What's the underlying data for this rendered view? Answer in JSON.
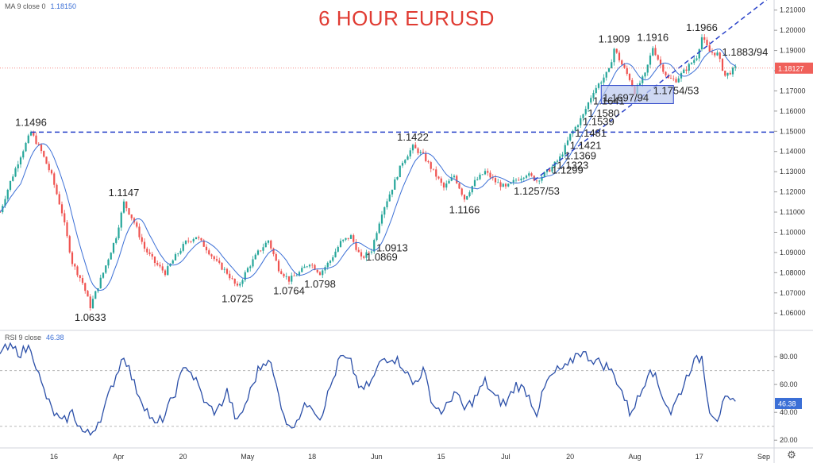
{
  "title": "6 HOUR EURUSD",
  "price_indicator": {
    "label": "MA 9 close 0",
    "value": "1.18150"
  },
  "rsi_indicator": {
    "label": "RSI 9 close",
    "value": "46.38"
  },
  "colors": {
    "title": "#e03b32",
    "up_candle": "#26a69a",
    "down_candle": "#ef5350",
    "ma_line": "#3b6fd6",
    "trend_line": "#2942c9",
    "rsi_line": "#2b4fa8",
    "last_price_tag": "#f0605a",
    "zone_fill": "#b9c8ee"
  },
  "chart_data": [
    {
      "type": "candlestick",
      "title": "6 HOUR EURUSD",
      "ylim": [
        1.053,
        1.215
      ],
      "y_ticks": [
        "1.21000",
        "1.20000",
        "1.19000",
        "1.18000",
        "1.17000",
        "1.16000",
        "1.15000",
        "1.14000",
        "1.13000",
        "1.12000",
        "1.11000",
        "1.10000",
        "1.09000",
        "1.08000",
        "1.07000",
        "1.06000"
      ],
      "x_ticks": [
        "16",
        "Apr",
        "20",
        "May",
        "18",
        "Jun",
        "15",
        "Jul",
        "20",
        "Aug",
        "17",
        "Sep"
      ],
      "last_price": "1.18127",
      "price_path": [
        [
          0,
          1.11
        ],
        [
          4,
          1.125
        ],
        [
          8,
          1.138
        ],
        [
          12,
          1.1496
        ],
        [
          16,
          1.14
        ],
        [
          20,
          1.128
        ],
        [
          24,
          1.11
        ],
        [
          28,
          1.085
        ],
        [
          32,
          1.075
        ],
        [
          35,
          1.0633
        ],
        [
          40,
          1.08
        ],
        [
          45,
          1.098
        ],
        [
          48,
          1.1147
        ],
        [
          52,
          1.105
        ],
        [
          56,
          1.092
        ],
        [
          60,
          1.085
        ],
        [
          64,
          1.08
        ],
        [
          68,
          1.088
        ],
        [
          72,
          1.095
        ],
        [
          76,
          1.098
        ],
        [
          80,
          1.092
        ],
        [
          84,
          1.085
        ],
        [
          88,
          1.08
        ],
        [
          92,
          1.0725
        ],
        [
          96,
          1.082
        ],
        [
          100,
          1.09
        ],
        [
          104,
          1.096
        ],
        [
          108,
          1.082
        ],
        [
          112,
          1.0764
        ],
        [
          116,
          1.08
        ],
        [
          120,
          1.085
        ],
        [
          124,
          1.0798
        ],
        [
          128,
          1.086
        ],
        [
          132,
          1.095
        ],
        [
          136,
          1.098
        ],
        [
          140,
          1.0869
        ],
        [
          144,
          1.0913
        ],
        [
          148,
          1.11
        ],
        [
          152,
          1.122
        ],
        [
          156,
          1.135
        ],
        [
          160,
          1.1422
        ],
        [
          164,
          1.138
        ],
        [
          168,
          1.13
        ],
        [
          172,
          1.122
        ],
        [
          176,
          1.128
        ],
        [
          180,
          1.1166
        ],
        [
          184,
          1.125
        ],
        [
          188,
          1.13
        ],
        [
          192,
          1.125
        ],
        [
          196,
          1.122
        ],
        [
          200,
          1.126
        ],
        [
          204,
          1.129
        ],
        [
          208,
          1.1257
        ],
        [
          212,
          1.1299
        ],
        [
          214,
          1.1323
        ],
        [
          217,
          1.1369
        ],
        [
          219,
          1.1421
        ],
        [
          221,
          1.1481
        ],
        [
          224,
          1.1539
        ],
        [
          226,
          1.158
        ],
        [
          228,
          1.1641
        ],
        [
          230,
          1.17
        ],
        [
          233,
          1.175
        ],
        [
          236,
          1.18
        ],
        [
          238,
          1.1909
        ],
        [
          241,
          1.183
        ],
        [
          244,
          1.176
        ],
        [
          246,
          1.1697
        ],
        [
          250,
          1.178
        ],
        [
          253,
          1.1916
        ],
        [
          256,
          1.183
        ],
        [
          259,
          1.176
        ],
        [
          262,
          1.1754
        ],
        [
          266,
          1.181
        ],
        [
          270,
          1.187
        ],
        [
          272,
          1.1966
        ],
        [
          275,
          1.1894
        ],
        [
          278,
          1.1883
        ],
        [
          281,
          1.1775
        ],
        [
          285,
          1.1812
        ]
      ],
      "horizontal_levels": [
        1.1496
      ],
      "trend_line": {
        "from": [
          207,
          1.1257
        ],
        "to": [
          300,
          1.218
        ]
      },
      "zone": {
        "x": [
          233,
          261
        ],
        "y": [
          1.1637,
          1.1727
        ],
        "label": "1.1697/94"
      },
      "annotations": [
        {
          "text": "1.1496",
          "at": [
            12,
            1.1496
          ],
          "pos": "above"
        },
        {
          "text": "1.0633",
          "at": [
            35,
            1.0633
          ],
          "pos": "below"
        },
        {
          "text": "1.1147",
          "at": [
            48,
            1.1147
          ],
          "pos": "above"
        },
        {
          "text": "1.0725",
          "at": [
            92,
            1.0725
          ],
          "pos": "below"
        },
        {
          "text": "1.0764",
          "at": [
            112,
            1.0764
          ],
          "pos": "below"
        },
        {
          "text": "1.0798",
          "at": [
            124,
            1.0798
          ],
          "pos": "below"
        },
        {
          "text": "1.0869",
          "at": [
            140,
            1.0869
          ],
          "pos": "right"
        },
        {
          "text": "1.0913",
          "at": [
            144,
            1.0913
          ],
          "pos": "right"
        },
        {
          "text": "1.1422",
          "at": [
            160,
            1.1422
          ],
          "pos": "above"
        },
        {
          "text": "1.1166",
          "at": [
            180,
            1.1166
          ],
          "pos": "below"
        },
        {
          "text": "1.1257/53",
          "at": [
            208,
            1.1257
          ],
          "pos": "below"
        },
        {
          "text": "1.1299",
          "at": [
            212,
            1.1299
          ],
          "pos": "right"
        },
        {
          "text": "1.1323",
          "at": [
            214,
            1.1323
          ],
          "pos": "right"
        },
        {
          "text": "1.1369",
          "at": [
            217,
            1.1369
          ],
          "pos": "right"
        },
        {
          "text": "1.1421",
          "at": [
            219,
            1.1421
          ],
          "pos": "right"
        },
        {
          "text": "1.1481",
          "at": [
            221,
            1.1481
          ],
          "pos": "right"
        },
        {
          "text": "1.1539",
          "at": [
            224,
            1.1539
          ],
          "pos": "right"
        },
        {
          "text": "1.1580",
          "at": [
            226,
            1.158
          ],
          "pos": "right"
        },
        {
          "text": "1.1641",
          "at": [
            228,
            1.1641
          ],
          "pos": "right"
        },
        {
          "text": "1.1909",
          "at": [
            238,
            1.1909
          ],
          "pos": "above"
        },
        {
          "text": "1.1916",
          "at": [
            253,
            1.1916
          ],
          "pos": "above"
        },
        {
          "text": "1.1966",
          "at": [
            272,
            1.1966
          ],
          "pos": "above"
        },
        {
          "text": "1.1883/94",
          "at": [
            278,
            1.1883
          ],
          "pos": "right"
        },
        {
          "text": "1.1754/53",
          "at": [
            262,
            1.1754
          ],
          "pos": "below"
        }
      ]
    },
    {
      "type": "line",
      "title": "RSI 9 close",
      "ylim": [
        15,
        92
      ],
      "y_ticks": [
        "80.00",
        "60.00",
        "40.00",
        "20.00"
      ],
      "bands": [
        70,
        30
      ],
      "last_value": 46.38,
      "rsi_path": [
        [
          0,
          84
        ],
        [
          4,
          86
        ],
        [
          8,
          83
        ],
        [
          12,
          87
        ],
        [
          16,
          60
        ],
        [
          20,
          42
        ],
        [
          24,
          32
        ],
        [
          28,
          40
        ],
        [
          32,
          26
        ],
        [
          35,
          24
        ],
        [
          40,
          40
        ],
        [
          44,
          62
        ],
        [
          48,
          82
        ],
        [
          52,
          60
        ],
        [
          56,
          45
        ],
        [
          60,
          30
        ],
        [
          64,
          38
        ],
        [
          68,
          55
        ],
        [
          72,
          75
        ],
        [
          76,
          62
        ],
        [
          80,
          45
        ],
        [
          84,
          40
        ],
        [
          88,
          55
        ],
        [
          92,
          32
        ],
        [
          96,
          50
        ],
        [
          100,
          70
        ],
        [
          104,
          80
        ],
        [
          108,
          52
        ],
        [
          112,
          28
        ],
        [
          116,
          38
        ],
        [
          120,
          48
        ],
        [
          124,
          36
        ],
        [
          128,
          58
        ],
        [
          132,
          80
        ],
        [
          136,
          75
        ],
        [
          140,
          55
        ],
        [
          144,
          62
        ],
        [
          148,
          78
        ],
        [
          152,
          80
        ],
        [
          156,
          74
        ],
        [
          160,
          60
        ],
        [
          164,
          70
        ],
        [
          168,
          45
        ],
        [
          172,
          40
        ],
        [
          176,
          55
        ],
        [
          180,
          42
        ],
        [
          184,
          50
        ],
        [
          188,
          62
        ],
        [
          192,
          50
        ],
        [
          196,
          46
        ],
        [
          200,
          60
        ],
        [
          204,
          55
        ],
        [
          208,
          40
        ],
        [
          212,
          62
        ],
        [
          216,
          70
        ],
        [
          220,
          72
        ],
        [
          224,
          84
        ],
        [
          228,
          80
        ],
        [
          232,
          76
        ],
        [
          236,
          72
        ],
        [
          240,
          60
        ],
        [
          244,
          40
        ],
        [
          248,
          52
        ],
        [
          252,
          74
        ],
        [
          256,
          55
        ],
        [
          260,
          40
        ],
        [
          264,
          56
        ],
        [
          268,
          74
        ],
        [
          272,
          80
        ],
        [
          275,
          42
        ],
        [
          278,
          36
        ],
        [
          281,
          48
        ],
        [
          285,
          46.38
        ]
      ]
    }
  ]
}
